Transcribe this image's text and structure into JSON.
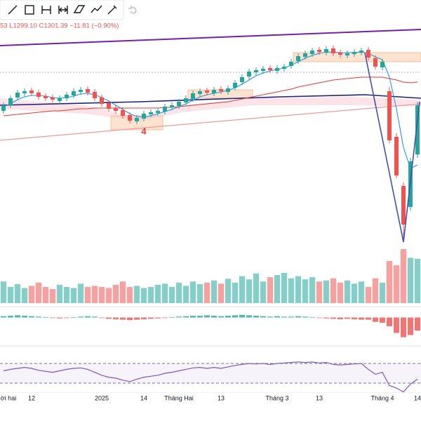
{
  "chart_data": {
    "type": "candlestick",
    "subtitle": "53 L1299.10 C1301.39 −11.81 (−0.90%)",
    "annotation": "4",
    "up_color": "#26a69a",
    "down_color": "#ef5350",
    "ylim": [
      1020,
      1380
    ],
    "open": [
      1222,
      1230,
      1241,
      1247,
      1251,
      1248,
      1243,
      1241,
      1236,
      1240,
      1244,
      1249,
      1253,
      1249,
      1241,
      1233,
      1226,
      1223,
      1216,
      1207,
      1211,
      1217,
      1219,
      1221,
      1227,
      1229,
      1234,
      1239,
      1246,
      1251,
      1247,
      1253,
      1249,
      1255,
      1263,
      1271,
      1277,
      1279,
      1283,
      1279,
      1282,
      1286,
      1293,
      1299,
      1303,
      1309,
      1305,
      1311,
      1305,
      1301,
      1303,
      1305,
      1309,
      1297,
      1284,
      1250,
      1185,
      1115,
      1085,
      1160
    ],
    "high": [
      1234,
      1244,
      1252,
      1254,
      1255,
      1252,
      1247,
      1245,
      1244,
      1249,
      1254,
      1256,
      1257,
      1253,
      1245,
      1237,
      1230,
      1227,
      1220,
      1216,
      1222,
      1224,
      1226,
      1232,
      1234,
      1239,
      1244,
      1251,
      1254,
      1255,
      1256,
      1257,
      1258,
      1266,
      1274,
      1282,
      1284,
      1286,
      1287,
      1287,
      1289,
      1296,
      1304,
      1308,
      1312,
      1313,
      1314,
      1315,
      1309,
      1308,
      1310,
      1312,
      1313,
      1301,
      1296,
      1256,
      1190,
      1120,
      1155,
      1235
    ],
    "low": [
      1218,
      1226,
      1237,
      1243,
      1243,
      1238,
      1236,
      1234,
      1232,
      1236,
      1240,
      1245,
      1244,
      1236,
      1228,
      1221,
      1218,
      1211,
      1204,
      1203,
      1207,
      1213,
      1215,
      1217,
      1223,
      1225,
      1230,
      1235,
      1242,
      1244,
      1243,
      1246,
      1245,
      1251,
      1259,
      1267,
      1273,
      1275,
      1276,
      1275,
      1278,
      1282,
      1289,
      1295,
      1299,
      1302,
      1301,
      1300,
      1298,
      1297,
      1299,
      1301,
      1294,
      1281,
      1280,
      1176,
      1126,
      1035,
      1080,
      1155
    ],
    "close": [
      1230,
      1240,
      1248,
      1250,
      1247,
      1242,
      1240,
      1238,
      1240,
      1245,
      1250,
      1252,
      1248,
      1240,
      1232,
      1225,
      1222,
      1215,
      1208,
      1212,
      1218,
      1220,
      1222,
      1228,
      1230,
      1235,
      1240,
      1247,
      1250,
      1248,
      1252,
      1250,
      1254,
      1262,
      1270,
      1278,
      1280,
      1282,
      1280,
      1283,
      1285,
      1292,
      1300,
      1304,
      1308,
      1306,
      1310,
      1304,
      1302,
      1304,
      1306,
      1308,
      1298,
      1285,
      1292,
      1180,
      1130,
      1060,
      1150,
      1230
    ],
    "ma": [
      {
        "color": "#2196f3",
        "values": [
          1228,
          1232,
          1238,
          1242,
          1244,
          1244,
          1243,
          1241,
          1240,
          1241,
          1243,
          1246,
          1247,
          1245,
          1241,
          1236,
          1230,
          1224,
          1218,
          1214,
          1213,
          1215,
          1218,
          1221,
          1224,
          1228,
          1232,
          1237,
          1242,
          1245,
          1247,
          1249,
          1251,
          1255,
          1260,
          1266,
          1272,
          1276,
          1279,
          1281,
          1283,
          1287,
          1292,
          1297,
          1301,
          1304,
          1306,
          1306,
          1305,
          1305,
          1305,
          1306,
          1304,
          1299,
          1295,
          1270,
          1225,
          1170,
          1140,
          1145
        ]
      },
      {
        "color": "#e53935",
        "values": [
          1215,
          1216,
          1217,
          1218,
          1219,
          1220,
          1221,
          1222,
          1222,
          1223,
          1224,
          1225,
          1225,
          1226,
          1226,
          1226,
          1226,
          1226,
          1226,
          1226,
          1226,
          1226,
          1226,
          1227,
          1227,
          1228,
          1229,
          1230,
          1231,
          1232,
          1233,
          1234,
          1235,
          1237,
          1239,
          1241,
          1243,
          1245,
          1247,
          1249,
          1251,
          1253,
          1256,
          1258,
          1260,
          1262,
          1264,
          1266,
          1267,
          1268,
          1269,
          1270,
          1270,
          1270,
          1270,
          1268,
          1266,
          1263,
          1262,
          1263
        ]
      }
    ],
    "volume": [
      40,
      30,
      35,
      28,
      32,
      38,
      30,
      26,
      34,
      30,
      28,
      36,
      30,
      32,
      30,
      28,
      34,
      40,
      30,
      32,
      28,
      30,
      34,
      36,
      30,
      38,
      32,
      40,
      35,
      38,
      42,
      36,
      45,
      38,
      50,
      44,
      55,
      40,
      48,
      52,
      56,
      46,
      50,
      44,
      48,
      40,
      42,
      46,
      38,
      42,
      36,
      40,
      30,
      46,
      38,
      78,
      70,
      100,
      84,
      82
    ],
    "volume_lim": [
      0,
      100
    ],
    "macd_hist": [
      3,
      4,
      5,
      4,
      3,
      2,
      1,
      -1,
      -2,
      -1,
      1,
      2,
      3,
      2,
      -1,
      -3,
      -4,
      -5,
      -6,
      -5,
      -4,
      -3,
      -2,
      -1,
      1,
      2,
      3,
      4,
      4,
      5,
      4,
      3,
      4,
      5,
      6,
      5,
      4,
      3,
      2,
      3,
      2,
      2,
      3,
      2,
      1,
      -1,
      -2,
      -3,
      -4,
      -3,
      -4,
      -5,
      -5,
      -10,
      -12,
      -20,
      -35,
      -45,
      -40,
      -30
    ],
    "macd_lim": [
      -60,
      20
    ],
    "rsi": [
      55,
      58,
      60,
      62,
      60,
      56,
      54,
      52,
      55,
      58,
      60,
      61,
      58,
      52,
      46,
      42,
      40,
      36,
      33,
      38,
      42,
      44,
      46,
      50,
      52,
      55,
      58,
      61,
      62,
      60,
      62,
      60,
      63,
      66,
      68,
      70,
      69,
      70,
      68,
      70,
      71,
      72,
      73,
      72,
      73,
      71,
      72,
      68,
      67,
      68,
      69,
      70,
      58,
      48,
      52,
      25,
      20,
      12,
      28,
      38
    ],
    "rsi_lim": [
      0,
      100
    ],
    "rsi_levels": [
      70,
      30
    ],
    "xticks": [
      {
        "value": 0,
        "label": "ời hai"
      },
      {
        "value": 4,
        "label": "12"
      },
      {
        "value": 14,
        "label": "2025"
      },
      {
        "value": 20,
        "label": "14"
      },
      {
        "value": 25,
        "label": "Tháng Hai"
      },
      {
        "value": 31,
        "label": "13"
      },
      {
        "value": 39,
        "label": "Tháng 3"
      },
      {
        "value": 45,
        "label": "13"
      },
      {
        "value": 54,
        "label": "Tháng 4"
      },
      {
        "value": 59,
        "label": "14"
      }
    ]
  }
}
